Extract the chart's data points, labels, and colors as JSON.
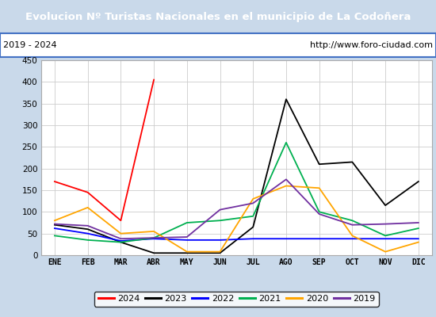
{
  "title": "Evolucion Nº Turistas Nacionales en el municipio de La Codoñera",
  "subtitle_left": "2019 - 2024",
  "subtitle_right": "http://www.foro-ciudad.com",
  "title_bg_color": "#4472c4",
  "title_text_color": "#ffffff",
  "subtitle_bg_color": "#ffffff",
  "plot_bg_color": "#ffffff",
  "fig_bg_color": "#c9d9ea",
  "months": [
    "ENE",
    "FEB",
    "MAR",
    "ABR",
    "MAY",
    "JUN",
    "JUL",
    "AGO",
    "SEP",
    "OCT",
    "NOV",
    "DIC"
  ],
  "series": {
    "2024": {
      "color": "#ff0000",
      "values": [
        170,
        145,
        80,
        405,
        null,
        null,
        null,
        null,
        null,
        null,
        null,
        null
      ]
    },
    "2023": {
      "color": "#000000",
      "values": [
        70,
        60,
        30,
        5,
        5,
        5,
        65,
        360,
        210,
        215,
        115,
        170
      ]
    },
    "2022": {
      "color": "#0000ff",
      "values": [
        62,
        50,
        33,
        38,
        35,
        35,
        38,
        38,
        38,
        38,
        38,
        38
      ]
    },
    "2021": {
      "color": "#00b050",
      "values": [
        45,
        35,
        30,
        40,
        75,
        80,
        90,
        260,
        100,
        80,
        45,
        62
      ]
    },
    "2020": {
      "color": "#ffa500",
      "values": [
        80,
        110,
        50,
        55,
        8,
        8,
        130,
        160,
        155,
        45,
        8,
        30
      ]
    },
    "2019": {
      "color": "#7030a0",
      "values": [
        72,
        68,
        38,
        40,
        42,
        105,
        120,
        175,
        95,
        70,
        72,
        75
      ]
    }
  },
  "ylim": [
    0,
    450
  ],
  "yticks": [
    0,
    50,
    100,
    150,
    200,
    250,
    300,
    350,
    400,
    450
  ],
  "legend_order": [
    "2024",
    "2023",
    "2022",
    "2021",
    "2020",
    "2019"
  ]
}
